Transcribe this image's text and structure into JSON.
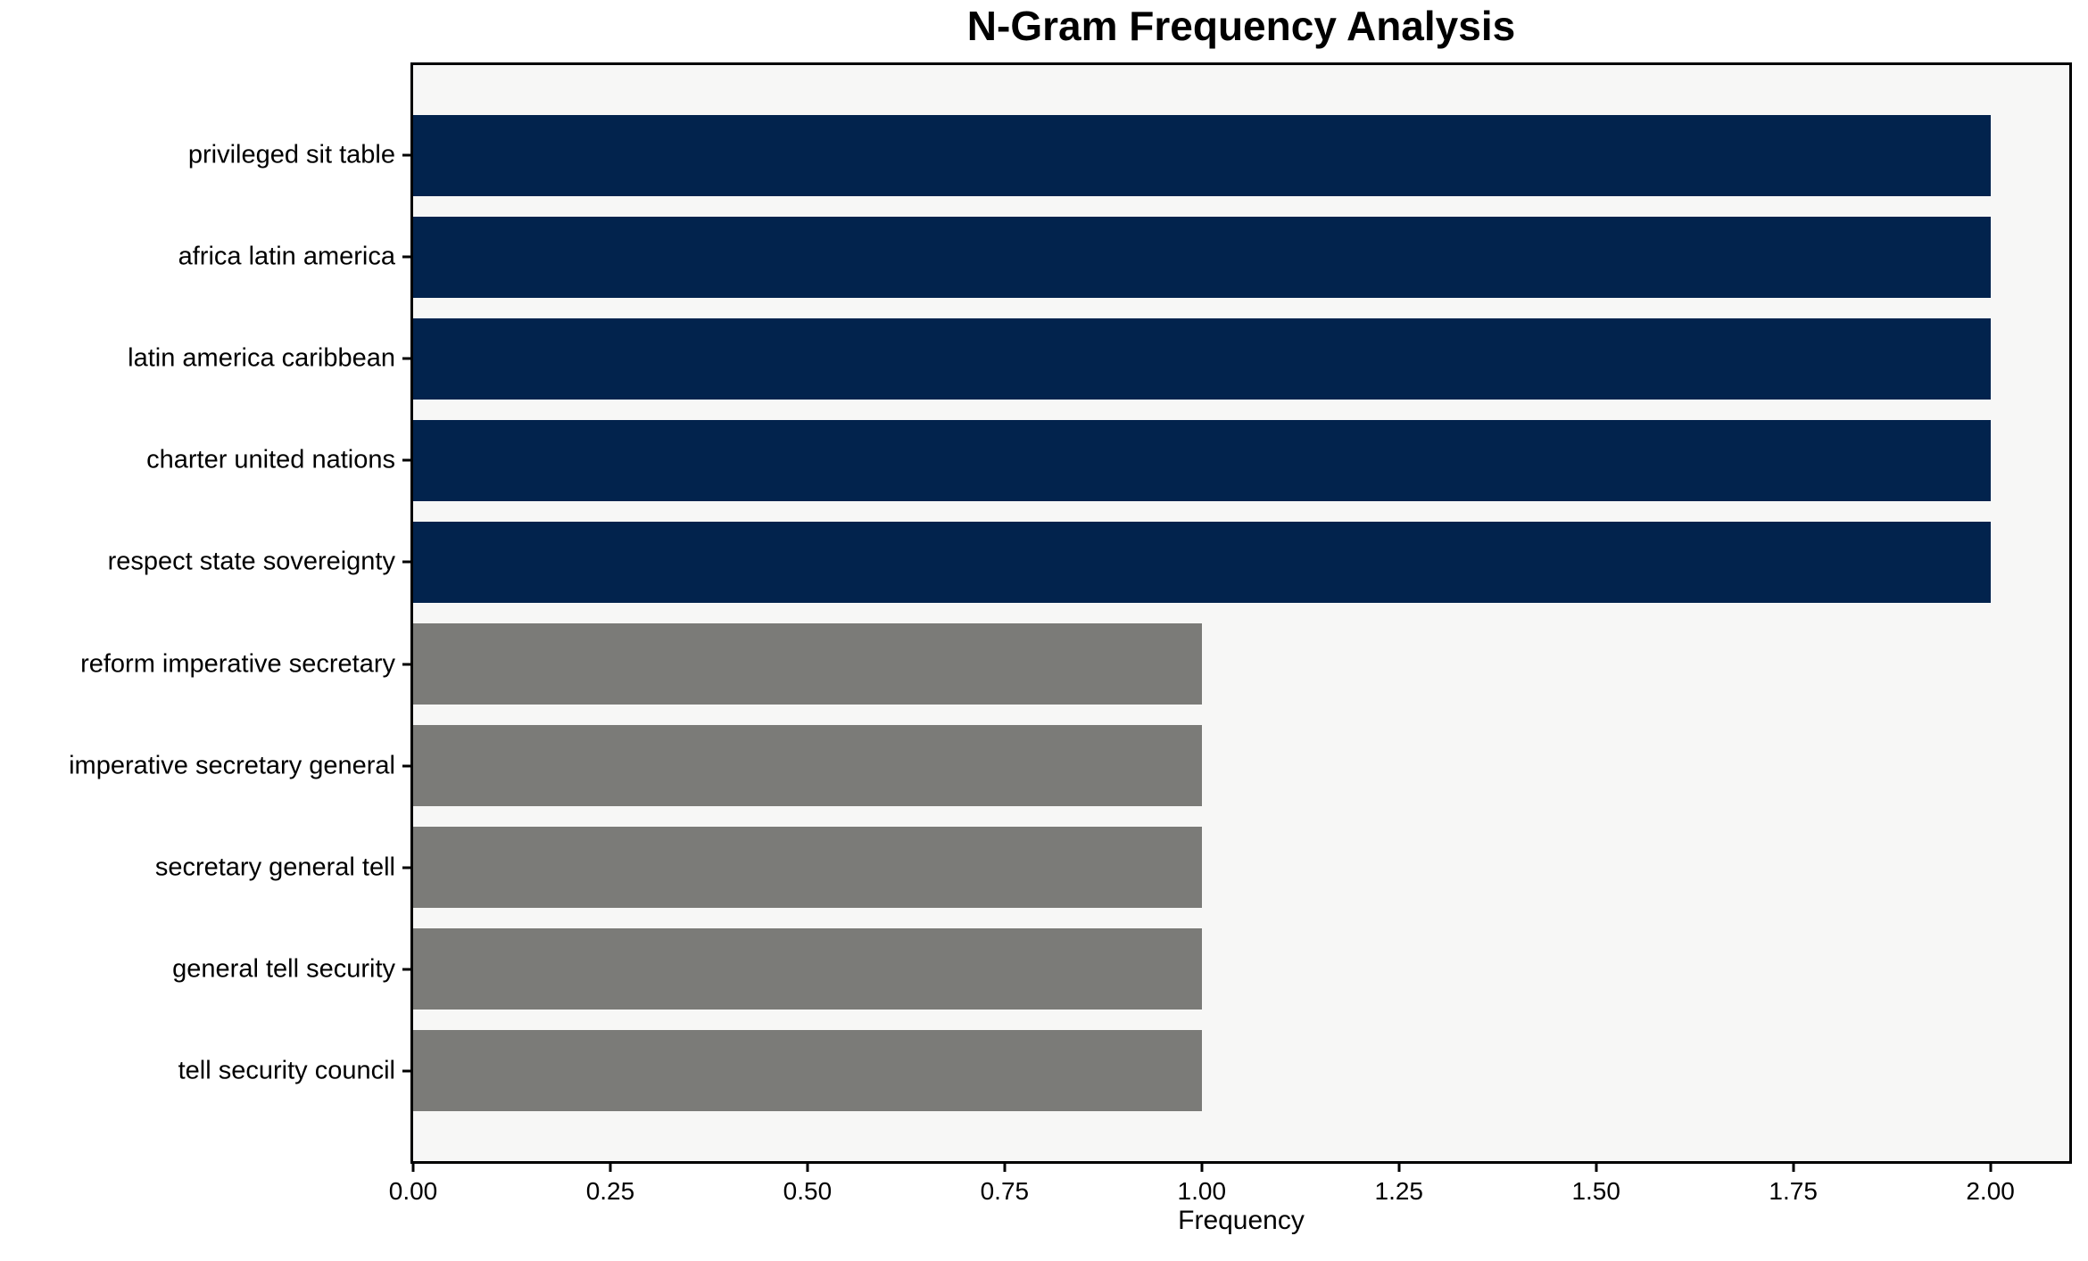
{
  "chart_data": {
    "type": "bar",
    "orientation": "horizontal",
    "title": "N-Gram Frequency Analysis",
    "xlabel": "Frequency",
    "ylabel": "",
    "categories": [
      "privileged sit table",
      "africa latin america",
      "latin america caribbean",
      "charter united nations",
      "respect state sovereignty",
      "reform imperative secretary",
      "imperative secretary general",
      "secretary general tell",
      "general tell security",
      "tell security council"
    ],
    "values": [
      2,
      2,
      2,
      2,
      2,
      1,
      1,
      1,
      1,
      1
    ],
    "bar_colors": [
      "#02234d",
      "#02234d",
      "#02234d",
      "#02234d",
      "#02234d",
      "#7b7b78",
      "#7b7b78",
      "#7b7b78",
      "#7b7b78",
      "#7b7b78"
    ],
    "xlim": [
      0,
      2.1
    ],
    "x_tick_values": [
      0,
      0.25,
      0.5,
      0.75,
      1,
      1.25,
      1.5,
      1.75,
      2
    ],
    "x_tick_labels": [
      "0.00",
      "0.25",
      "0.50",
      "0.75",
      "1.00",
      "1.25",
      "1.50",
      "1.75",
      "2.00"
    ],
    "bar_height_ratio": 0.8,
    "y_outer_pad": 0.49,
    "grid": false,
    "legend_position": "none",
    "colors": {
      "bar_high": "#02234d",
      "bar_low": "#7b7b78",
      "plot_bg": "#f7f7f6",
      "figure_bg": "#ffffff",
      "axis_line": "#000000",
      "text": "#000000"
    }
  }
}
